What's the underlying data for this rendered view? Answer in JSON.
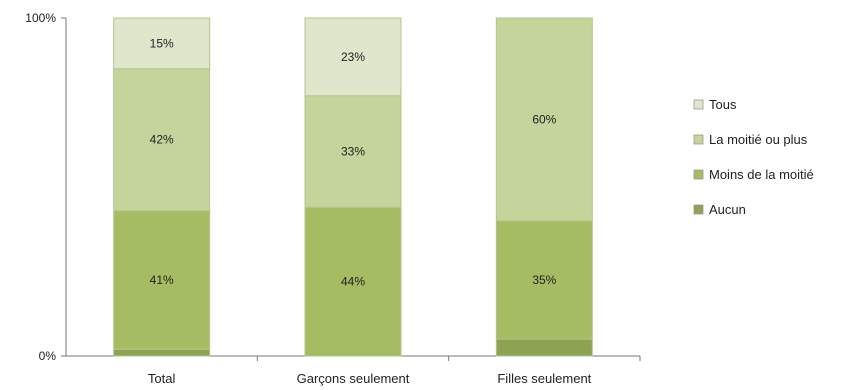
{
  "chart_data": {
    "type": "bar",
    "stacked": true,
    "percent_stacked": true,
    "categories": [
      "Total",
      "Garçons seulement",
      "Filles seulement"
    ],
    "series": [
      {
        "name": "Aucun",
        "values": [
          2,
          0,
          5
        ],
        "labels": [
          "",
          "",
          ""
        ],
        "color": "#8da252"
      },
      {
        "name": "Moins de la moitié",
        "values": [
          41,
          44,
          35
        ],
        "labels": [
          "41%",
          "44%",
          "35%"
        ],
        "color": "#a6bc63"
      },
      {
        "name": "La moitié ou plus",
        "values": [
          42,
          33,
          60
        ],
        "labels": [
          "42%",
          "33%",
          "60%"
        ],
        "color": "#c5d49b"
      },
      {
        "name": "Tous",
        "values": [
          15,
          23,
          0
        ],
        "labels": [
          "15%",
          "23%",
          ""
        ],
        "color": "#dfe6cb"
      }
    ],
    "y_ticks": [
      "0%",
      "100%"
    ],
    "ylim": [
      0,
      100
    ],
    "legend_position": "right",
    "grid": false,
    "legend_order": [
      "Tous",
      "La moitié ou plus",
      "Moins de la moitié",
      "Aucun"
    ]
  }
}
